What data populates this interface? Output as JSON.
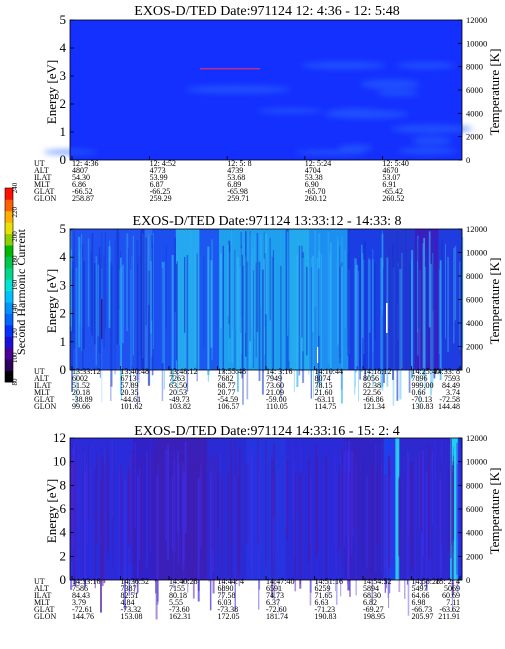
{
  "colorbar": {
    "label": "Second Harmonic Current",
    "ticks": [
      "80",
      "100",
      "120",
      "140",
      "160",
      "180",
      "200",
      "220",
      "240"
    ],
    "colors": [
      "#000000",
      "#2b005e",
      "#4b009a",
      "#1c10d8",
      "#0033ff",
      "#0067ff",
      "#0094ff",
      "#00c1ff",
      "#00e4d4",
      "#00d78a",
      "#00c84c",
      "#00b800",
      "#8fd000",
      "#e8e000",
      "#ffb000",
      "#ff6000",
      "#ff1000"
    ]
  },
  "chart_data": [
    {
      "type": "heatmap",
      "title": "EXOS-D/TED   Date:971124   12: 4:36 - 12: 5:48",
      "ylabel": "Energy [eV]",
      "y2label": "Temperature [K]",
      "ylim": [
        0,
        5
      ],
      "y2lim": [
        0,
        12000
      ],
      "yticks": [
        "0",
        "1",
        "2",
        "3",
        "4",
        "5"
      ],
      "y2ticks": [
        "0",
        "2000",
        "4000",
        "6000",
        "8000",
        "10000",
        "12000"
      ],
      "base_color": "#1430ff",
      "ephemeris": {
        "row_labels": [
          "UT",
          "ALT",
          "ILAT",
          "MLT",
          "GLAT",
          "GLON"
        ],
        "columns": [
          [
            "12: 4:36",
            "4807",
            "54.30",
            "6.86",
            "-66.52",
            "258.87"
          ],
          [
            "12: 4:52",
            "4773",
            "53.99",
            "6.87",
            "-66.25",
            "259.29"
          ],
          [
            "12: 5: 8",
            "4739",
            "53.68",
            "6.89",
            "-65.98",
            "259.71"
          ],
          [
            "12: 5:24",
            "4704",
            "53.38",
            "6.90",
            "-65.70",
            "260.12"
          ],
          [
            "12: 5:40",
            "4670",
            "53.07",
            "6.91",
            "-65.42",
            "260.52"
          ]
        ]
      }
    },
    {
      "type": "heatmap",
      "title": "EXOS-D/TED   Date:971124   13:33:12 - 14:33: 8",
      "ylabel": "Energy [eV]",
      "y2label": "Temperature [K]",
      "ylim": [
        0,
        5
      ],
      "y2lim": [
        0,
        12000
      ],
      "yticks": [
        "0",
        "1",
        "2",
        "3",
        "4",
        "5"
      ],
      "y2ticks": [
        "0",
        "2000",
        "4000",
        "6000",
        "8000",
        "10000",
        "12000"
      ],
      "base_color": "#1a48ff",
      "ephemeris": {
        "row_labels": [
          "UT",
          "ALT",
          "ILAT",
          "MLT",
          "GLAT",
          "GLON"
        ],
        "columns": [
          [
            "13:33:12",
            "6002",
            "51.52",
            "20.18",
            "-38.89",
            "99.66"
          ],
          [
            "13:40:48",
            "6713",
            "57.89",
            "20.35",
            "-44.61",
            "101.62"
          ],
          [
            "13:48:12",
            "7263",
            "63.50",
            "20.53",
            "-49.73",
            "103.82"
          ],
          [
            "13:55:48",
            "7682",
            "68.77",
            "20.77",
            "-54.59",
            "106.57"
          ],
          [
            "14: 3:16",
            "7949",
            "73.60",
            "21.09",
            "-59.00",
            "110.05"
          ],
          [
            "14:10:44",
            "8074",
            "78.15",
            "21.60",
            "-63.11",
            "114.75"
          ],
          [
            "14:18:12",
            "8056",
            "82.38",
            "22.56",
            "-66.86",
            "121.34"
          ],
          [
            "14:25:40",
            "7896",
            "999.00",
            "0.66",
            "-70.13",
            "130.83"
          ],
          [
            "14:33: 8",
            "7593",
            "84.49",
            "3.74",
            "-72.58",
            "144.48"
          ]
        ]
      }
    },
    {
      "type": "heatmap",
      "title": "EXOS-D/TED   Date:971124   14:33:16 - 15: 2: 4",
      "ylabel": "Energy [eV]",
      "y2label": "Temperature [K]",
      "ylim": [
        0,
        12
      ],
      "y2lim": [
        0,
        12000
      ],
      "yticks": [
        "0",
        "2",
        "4",
        "6",
        "8",
        "10",
        "12"
      ],
      "y2ticks": [
        "0",
        "2000",
        "4000",
        "6000",
        "8000",
        "10000",
        "12000"
      ],
      "base_color": "#2a2ae6",
      "ephemeris": {
        "row_labels": [
          "UT",
          "ALT",
          "ILAT",
          "MLT",
          "GLAT",
          "GLON"
        ],
        "columns": [
          [
            "14:33:16",
            "7586",
            "84.43",
            "3.79",
            "-72.61",
            "144.76"
          ],
          [
            "14:36:52",
            "7387",
            "82.51",
            "4.84",
            "-73.32",
            "153.08"
          ],
          [
            "14:40:28",
            "7155",
            "80.18",
            "5.55",
            "-73.60",
            "162.31"
          ],
          [
            "14:44: 4",
            "6890",
            "77.58",
            "6.03",
            "-73.38",
            "172.05"
          ],
          [
            "14:47:40",
            "6591",
            "74.73",
            "6.37",
            "-72.60",
            "181.74"
          ],
          [
            "14:51:16",
            "6259",
            "71.65",
            "6.63",
            "-71.23",
            "190.83"
          ],
          [
            "14:54:52",
            "5894",
            "68.30",
            "6.82",
            "-69.27",
            "198.95"
          ],
          [
            "14:58:28",
            "5497",
            "64.66",
            "6.98",
            "-66.73",
            "205.97"
          ],
          [
            "15: 2: 4",
            "5069",
            "60.69",
            "7.11",
            "-63.62",
            "211.91"
          ]
        ]
      }
    }
  ]
}
